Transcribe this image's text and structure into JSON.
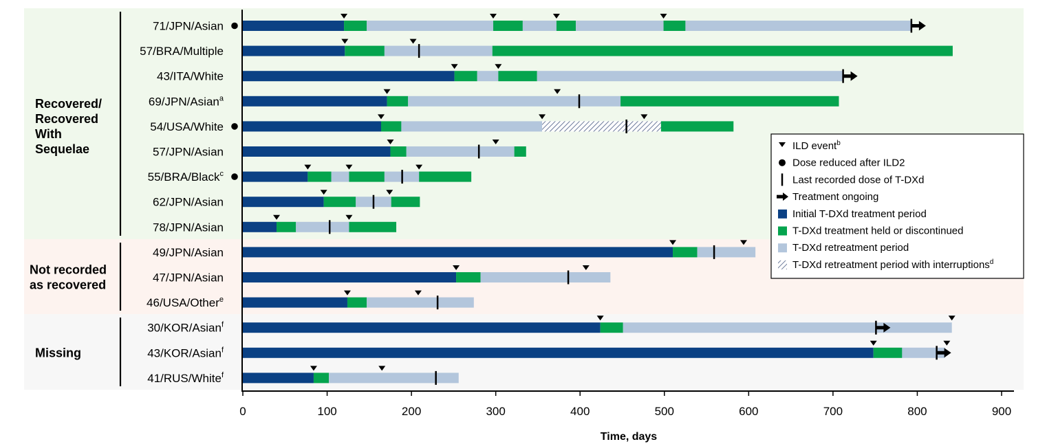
{
  "chart_data": {
    "type": "swimmer",
    "xlabel": "Time, days",
    "xlim": [
      0,
      900
    ],
    "x_ticks": [
      0,
      100,
      200,
      300,
      400,
      500,
      600,
      700,
      800,
      900
    ],
    "grid": false,
    "legend_placement": "right",
    "colors": {
      "initial": "#0b4184",
      "held": "#05a44e",
      "retreat": "#b3c6dc",
      "interrupt_stripe": "#6c7a9a",
      "bg_recovered": "#f0f8ec",
      "bg_not_recorded": "#fdf3ef",
      "bg_missing": "#f7f7f7"
    },
    "groups": [
      {
        "label_lines": [
          "Recovered/",
          "Recovered",
          "With",
          "Sequelae"
        ],
        "rows": [
          0,
          8
        ]
      },
      {
        "label_lines": [
          "Not recorded",
          "as recovered"
        ],
        "rows": [
          9,
          11
        ]
      },
      {
        "label_lines": [
          "Missing"
        ],
        "rows": [
          12,
          14
        ]
      }
    ],
    "patients": [
      {
        "label": "71/JPN/Asian",
        "sup": "",
        "dose_reduced": true,
        "segments": [
          {
            "type": "initial",
            "start": 0,
            "end": 120
          },
          {
            "type": "held",
            "start": 120,
            "end": 147
          },
          {
            "type": "retreat",
            "start": 147,
            "end": 297
          },
          {
            "type": "held",
            "start": 297,
            "end": 332
          },
          {
            "type": "retreat",
            "start": 332,
            "end": 372
          },
          {
            "type": "held",
            "start": 372,
            "end": 395
          },
          {
            "type": "retreat",
            "start": 395,
            "end": 499
          },
          {
            "type": "held",
            "start": 499,
            "end": 525
          },
          {
            "type": "retreat",
            "start": 525,
            "end": 793
          }
        ],
        "ild_events": [
          120,
          297,
          372,
          499
        ],
        "last_dose": 793,
        "ongoing": true
      },
      {
        "label": "57/BRA/Multiple",
        "sup": "",
        "dose_reduced": false,
        "segments": [
          {
            "type": "initial",
            "start": 0,
            "end": 121
          },
          {
            "type": "held",
            "start": 121,
            "end": 168
          },
          {
            "type": "retreat",
            "start": 168,
            "end": 296
          },
          {
            "type": "held",
            "start": 296,
            "end": 842
          }
        ],
        "ild_events": [
          121,
          202
        ],
        "last_dose": 209,
        "ongoing": false
      },
      {
        "label": "43/ITA/White",
        "sup": "",
        "dose_reduced": false,
        "segments": [
          {
            "type": "initial",
            "start": 0,
            "end": 251
          },
          {
            "type": "held",
            "start": 251,
            "end": 278
          },
          {
            "type": "retreat",
            "start": 278,
            "end": 303
          },
          {
            "type": "held",
            "start": 303,
            "end": 349
          },
          {
            "type": "retreat",
            "start": 349,
            "end": 712
          }
        ],
        "ild_events": [
          251,
          303
        ],
        "last_dose": 712,
        "ongoing": true
      },
      {
        "label": "69/JPN/Asian",
        "sup": "a",
        "dose_reduced": false,
        "segments": [
          {
            "type": "initial",
            "start": 0,
            "end": 171
          },
          {
            "type": "held",
            "start": 171,
            "end": 196
          },
          {
            "type": "retreat",
            "start": 196,
            "end": 448
          },
          {
            "type": "held",
            "start": 448,
            "end": 707
          }
        ],
        "ild_events": [
          171,
          373
        ],
        "last_dose": 399,
        "ongoing": false
      },
      {
        "label": "54/USA/White",
        "sup": "",
        "dose_reduced": true,
        "segments": [
          {
            "type": "initial",
            "start": 0,
            "end": 164
          },
          {
            "type": "held",
            "start": 164,
            "end": 188
          },
          {
            "type": "retreat",
            "start": 188,
            "end": 355
          },
          {
            "type": "interrupt",
            "start": 355,
            "end": 496
          },
          {
            "type": "held",
            "start": 496,
            "end": 582
          }
        ],
        "ild_events": [
          164,
          355,
          476
        ],
        "last_dose": 455,
        "ongoing": false
      },
      {
        "label": "57/JPN/Asian",
        "sup": "",
        "dose_reduced": false,
        "segments": [
          {
            "type": "initial",
            "start": 0,
            "end": 175
          },
          {
            "type": "held",
            "start": 175,
            "end": 194
          },
          {
            "type": "retreat",
            "start": 194,
            "end": 322
          },
          {
            "type": "held",
            "start": 322,
            "end": 336
          }
        ],
        "ild_events": [
          175,
          300
        ],
        "last_dose": 280,
        "ongoing": false
      },
      {
        "label": "55/BRA/Black",
        "sup": "c",
        "dose_reduced": true,
        "segments": [
          {
            "type": "initial",
            "start": 0,
            "end": 77
          },
          {
            "type": "held",
            "start": 77,
            "end": 105
          },
          {
            "type": "retreat",
            "start": 105,
            "end": 126
          },
          {
            "type": "held",
            "start": 126,
            "end": 168
          },
          {
            "type": "retreat",
            "start": 168,
            "end": 209
          },
          {
            "type": "held",
            "start": 209,
            "end": 271
          }
        ],
        "ild_events": [
          77,
          126,
          209
        ],
        "last_dose": 189,
        "ongoing": false
      },
      {
        "label": "62/JPN/Asian",
        "sup": "",
        "dose_reduced": false,
        "segments": [
          {
            "type": "initial",
            "start": 0,
            "end": 96
          },
          {
            "type": "held",
            "start": 96,
            "end": 134
          },
          {
            "type": "retreat",
            "start": 134,
            "end": 176
          },
          {
            "type": "held",
            "start": 176,
            "end": 210
          }
        ],
        "ild_events": [
          96,
          174
        ],
        "last_dose": 155,
        "ongoing": false
      },
      {
        "label": "78/JPN/Asian",
        "sup": "",
        "dose_reduced": false,
        "segments": [
          {
            "type": "initial",
            "start": 0,
            "end": 40
          },
          {
            "type": "held",
            "start": 40,
            "end": 63
          },
          {
            "type": "retreat",
            "start": 63,
            "end": 126
          },
          {
            "type": "held",
            "start": 126,
            "end": 182
          }
        ],
        "ild_events": [
          40,
          126
        ],
        "last_dose": 103,
        "ongoing": false
      },
      {
        "label": "49/JPN/Asian",
        "sup": "",
        "dose_reduced": false,
        "segments": [
          {
            "type": "initial",
            "start": 0,
            "end": 510
          },
          {
            "type": "held",
            "start": 510,
            "end": 539
          },
          {
            "type": "retreat",
            "start": 539,
            "end": 608
          }
        ],
        "ild_events": [
          510,
          594
        ],
        "last_dose": 559,
        "ongoing": false
      },
      {
        "label": "47/JPN/Asian",
        "sup": "",
        "dose_reduced": false,
        "segments": [
          {
            "type": "initial",
            "start": 0,
            "end": 253
          },
          {
            "type": "held",
            "start": 253,
            "end": 282
          },
          {
            "type": "retreat",
            "start": 282,
            "end": 436
          }
        ],
        "ild_events": [
          253,
          407
        ],
        "last_dose": 386,
        "ongoing": false
      },
      {
        "label": "46/USA/Other",
        "sup": "e",
        "dose_reduced": false,
        "segments": [
          {
            "type": "initial",
            "start": 0,
            "end": 124
          },
          {
            "type": "held",
            "start": 124,
            "end": 147
          },
          {
            "type": "retreat",
            "start": 147,
            "end": 274
          }
        ],
        "ild_events": [
          124,
          208
        ],
        "last_dose": 231,
        "ongoing": false
      },
      {
        "label": "30/KOR/Asian",
        "sup": "f",
        "dose_reduced": false,
        "segments": [
          {
            "type": "initial",
            "start": 0,
            "end": 424
          },
          {
            "type": "held",
            "start": 424,
            "end": 451
          },
          {
            "type": "retreat",
            "start": 451,
            "end": 841
          }
        ],
        "ild_events": [
          424,
          841
        ],
        "last_dose": 751,
        "ongoing": true
      },
      {
        "label": "43/KOR/Asian",
        "sup": "f",
        "dose_reduced": false,
        "segments": [
          {
            "type": "initial",
            "start": 0,
            "end": 748
          },
          {
            "type": "held",
            "start": 748,
            "end": 782
          },
          {
            "type": "retreat",
            "start": 782,
            "end": 833
          }
        ],
        "ild_events": [
          748,
          835
        ],
        "last_dose": 823,
        "ongoing": true
      },
      {
        "label": "41/RUS/White",
        "sup": "f",
        "dose_reduced": false,
        "segments": [
          {
            "type": "initial",
            "start": 0,
            "end": 84
          },
          {
            "type": "held",
            "start": 84,
            "end": 102
          },
          {
            "type": "retreat",
            "start": 102,
            "end": 256
          }
        ],
        "ild_events": [
          84,
          165
        ],
        "last_dose": 229,
        "ongoing": false
      }
    ],
    "legend": [
      {
        "key": "ild",
        "label": "ILD event",
        "sup": "b"
      },
      {
        "key": "dose_reduced",
        "label": "Dose reduced after ILD2",
        "sup": ""
      },
      {
        "key": "last_dose",
        "label": "Last recorded dose of T-DXd",
        "sup": ""
      },
      {
        "key": "ongoing",
        "label": "Treatment ongoing",
        "sup": ""
      },
      {
        "key": "initial",
        "label": "Initial T-DXd treatment period",
        "sup": ""
      },
      {
        "key": "held",
        "label": "T-DXd treatment held or discontinued",
        "sup": ""
      },
      {
        "key": "retreat",
        "label": "T-DXd retreatment period",
        "sup": ""
      },
      {
        "key": "interrupt",
        "label": "T-DXd retreatment period with interruptions",
        "sup": "d"
      }
    ]
  }
}
